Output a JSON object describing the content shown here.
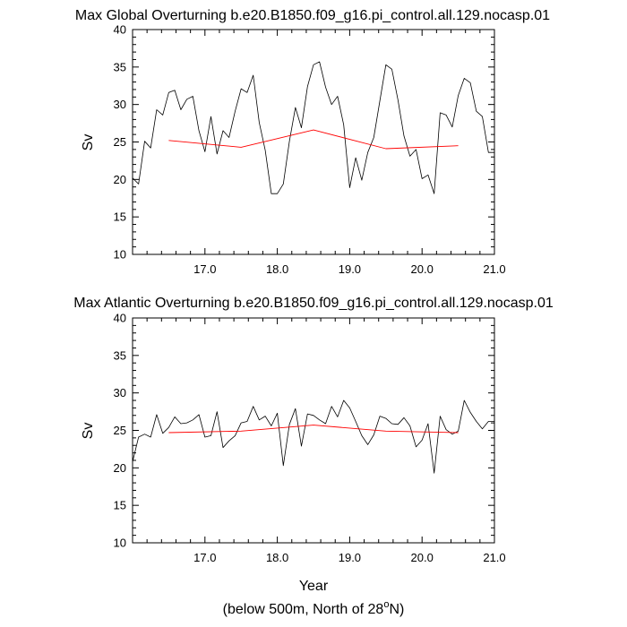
{
  "chart_data": [
    {
      "type": "line",
      "title": "Max Global Overturning b.e20.B1850.f09_g16.pi_control.all.129.nocasp.01",
      "xlabel": "",
      "ylabel": "Sv",
      "xlim": [
        16.0,
        21.0
      ],
      "ylim": [
        10,
        40
      ],
      "xticks": [
        "17.0",
        "18.0",
        "19.0",
        "20.0",
        "21.0"
      ],
      "yticks": [
        "10",
        "15",
        "20",
        "25",
        "30",
        "35",
        "40"
      ],
      "series": [
        {
          "color": "#000000",
          "x": [
            16.0,
            16.083,
            16.167,
            16.25,
            16.333,
            16.417,
            16.5,
            16.583,
            16.667,
            16.75,
            16.833,
            16.917,
            17.0,
            17.083,
            17.167,
            17.25,
            17.333,
            17.417,
            17.5,
            17.583,
            17.667,
            17.75,
            17.833,
            17.917,
            18.0,
            18.083,
            18.167,
            18.25,
            18.333,
            18.417,
            18.5,
            18.583,
            18.667,
            18.75,
            18.833,
            18.917,
            19.0,
            19.083,
            19.167,
            19.25,
            19.333,
            19.417,
            19.5,
            19.583,
            19.667,
            19.75,
            19.833,
            19.917,
            20.0,
            20.083,
            20.167,
            20.25,
            20.333,
            20.417,
            20.5,
            20.583,
            20.667,
            20.75,
            20.833,
            20.917,
            21.0
          ],
          "values": [
            20.2,
            19.4,
            25.1,
            24.2,
            29.3,
            28.6,
            31.6,
            31.9,
            29.3,
            30.7,
            31.1,
            26.5,
            23.7,
            28.4,
            23.4,
            26.5,
            25.6,
            29.1,
            32.1,
            31.6,
            33.9,
            27.6,
            23.9,
            18.1,
            18.1,
            19.4,
            25.1,
            29.6,
            26.9,
            32.4,
            35.3,
            35.7,
            32.3,
            30.0,
            31.1,
            27.3,
            18.9,
            22.9,
            19.9,
            23.6,
            25.6,
            30.5,
            35.3,
            34.7,
            30.6,
            25.8,
            23.1,
            24.0,
            20.1,
            20.6,
            18.1,
            28.9,
            28.6,
            27.0,
            31.2,
            33.5,
            32.9,
            29.1,
            28.4,
            23.6,
            23.6
          ]
        },
        {
          "color": "#ff0000",
          "x": [
            16.5,
            17.5,
            18.5,
            19.5,
            20.5
          ],
          "values": [
            25.2,
            24.3,
            26.6,
            24.1,
            24.5
          ]
        }
      ]
    },
    {
      "type": "line",
      "title": "Max Atlantic Overturning b.e20.B1850.f09_g16.pi_control.all.129.nocasp.01",
      "xlabel": "Year",
      "ylabel": "Sv",
      "xlim": [
        16.0,
        21.0
      ],
      "ylim": [
        10,
        40
      ],
      "xticks": [
        "17.0",
        "18.0",
        "19.0",
        "20.0",
        "21.0"
      ],
      "yticks": [
        "10",
        "15",
        "20",
        "25",
        "30",
        "35",
        "40"
      ],
      "series": [
        {
          "color": "#000000",
          "x": [
            16.0,
            16.083,
            16.167,
            16.25,
            16.333,
            16.417,
            16.5,
            16.583,
            16.667,
            16.75,
            16.833,
            16.917,
            17.0,
            17.083,
            17.167,
            17.25,
            17.333,
            17.417,
            17.5,
            17.583,
            17.667,
            17.75,
            17.833,
            17.917,
            18.0,
            18.083,
            18.167,
            18.25,
            18.333,
            18.417,
            18.5,
            18.583,
            18.667,
            18.75,
            18.833,
            18.917,
            19.0,
            19.083,
            19.167,
            19.25,
            19.333,
            19.417,
            19.5,
            19.583,
            19.667,
            19.75,
            19.833,
            19.917,
            20.0,
            20.083,
            20.167,
            20.25,
            20.333,
            20.417,
            20.5,
            20.583,
            20.667,
            20.75,
            20.833,
            20.917,
            21.0
          ],
          "values": [
            20.8,
            24.1,
            24.5,
            24.1,
            27.1,
            24.6,
            25.4,
            26.8,
            25.9,
            26.0,
            26.4,
            27.1,
            24.1,
            24.3,
            27.5,
            22.7,
            23.6,
            24.3,
            26.0,
            26.2,
            28.2,
            26.4,
            26.9,
            25.6,
            27.3,
            20.3,
            25.8,
            27.9,
            22.9,
            27.2,
            27.0,
            26.4,
            25.9,
            28.2,
            26.8,
            29.0,
            28.0,
            26.2,
            24.3,
            23.1,
            24.4,
            26.9,
            26.6,
            25.9,
            25.8,
            26.7,
            25.6,
            22.8,
            23.7,
            25.9,
            19.3,
            26.9,
            25.1,
            24.5,
            24.9,
            29.0,
            27.4,
            26.2,
            25.2,
            26.2,
            26.2
          ]
        },
        {
          "color": "#ff0000",
          "x": [
            16.5,
            17.5,
            18.5,
            19.5,
            20.5
          ],
          "values": [
            24.7,
            24.9,
            25.7,
            24.9,
            24.7
          ]
        }
      ]
    }
  ],
  "footnote": {
    "prefix": "(below 500m, North of 28",
    "superscript": "o",
    "suffix": "N)"
  }
}
